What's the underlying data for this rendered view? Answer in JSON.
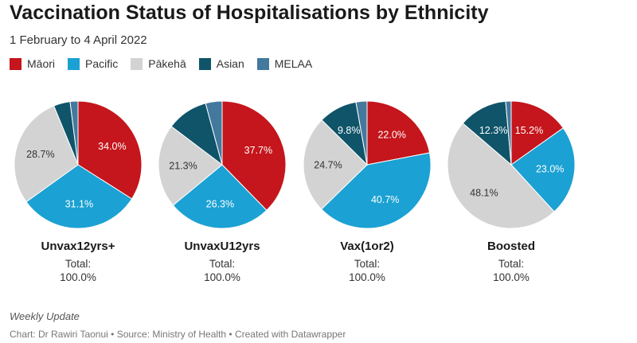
{
  "title": "Vaccination Status of Hospitalisations by Ethnicity",
  "subtitle": "1 February to 4 April 2022",
  "legend": [
    {
      "label": "Māori",
      "color": "#c4161c"
    },
    {
      "label": "Pacific",
      "color": "#1ba1d3"
    },
    {
      "label": "Pākehā",
      "color": "#d3d3d3"
    },
    {
      "label": "Asian",
      "color": "#0f5469"
    },
    {
      "label": "MELAA",
      "color": "#44799e"
    }
  ],
  "chart_data": [
    {
      "type": "pie",
      "title": "Unvax12yrs+",
      "total_label": "Total:",
      "total_value": "100.0%",
      "slices": [
        {
          "label": "Māori",
          "value": 34.0,
          "display": "34.0%"
        },
        {
          "label": "Pacific",
          "value": 31.1,
          "display": "31.1%"
        },
        {
          "label": "Pākehā",
          "value": 28.7,
          "display": "28.7%"
        },
        {
          "label": "Asian",
          "value": 4.2,
          "display": ""
        },
        {
          "label": "MELAA",
          "value": 2.0,
          "display": ""
        }
      ]
    },
    {
      "type": "pie",
      "title": "UnvaxU12yrs",
      "total_label": "Total:",
      "total_value": "100.0%",
      "slices": [
        {
          "label": "Māori",
          "value": 37.7,
          "display": "37.7%"
        },
        {
          "label": "Pacific",
          "value": 26.3,
          "display": "26.3%"
        },
        {
          "label": "Pākehā",
          "value": 21.3,
          "display": "21.3%"
        },
        {
          "label": "Asian",
          "value": 10.5,
          "display": ""
        },
        {
          "label": "MELAA",
          "value": 4.2,
          "display": ""
        }
      ]
    },
    {
      "type": "pie",
      "title": "Vax(1or2)",
      "total_label": "Total:",
      "total_value": "100.0%",
      "slices": [
        {
          "label": "Māori",
          "value": 22.0,
          "display": "22.0%"
        },
        {
          "label": "Pacific",
          "value": 40.7,
          "display": "40.7%"
        },
        {
          "label": "Pākehā",
          "value": 24.7,
          "display": "24.7%"
        },
        {
          "label": "Asian",
          "value": 9.8,
          "display": "9.8%"
        },
        {
          "label": "MELAA",
          "value": 2.8,
          "display": ""
        }
      ]
    },
    {
      "type": "pie",
      "title": "Boosted",
      "total_label": "Total:",
      "total_value": "100.0%",
      "slices": [
        {
          "label": "Māori",
          "value": 15.2,
          "display": "15.2%"
        },
        {
          "label": "Pacific",
          "value": 23.0,
          "display": "23.0%"
        },
        {
          "label": "Pākehā",
          "value": 48.1,
          "display": "48.1%"
        },
        {
          "label": "Asian",
          "value": 12.3,
          "display": "12.3%"
        },
        {
          "label": "MELAA",
          "value": 1.4,
          "display": ""
        }
      ]
    }
  ],
  "notes": "Weekly Update",
  "source": "Chart: Dr Rawiri Taonui • Source: Ministry of Health • Created with Datawrapper"
}
